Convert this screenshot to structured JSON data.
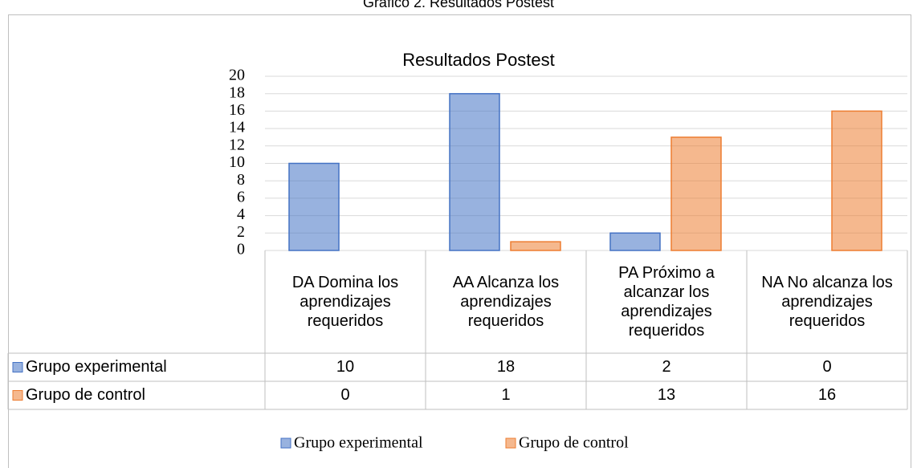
{
  "chart_data": {
    "type": "bar",
    "caption": "Gráfico 2. Resultados Postest",
    "title": "Resultados Postest",
    "categories": [
      "DA Domina los aprendizajes requeridos",
      "AA Alcanza los aprendizajes requeridos",
      "PA Próximo a alcanzar los aprendizajes requeridos",
      "NA No alcanza los aprendizajes requeridos"
    ],
    "series": [
      {
        "name": "Grupo experimental",
        "color": "#4472c4",
        "values": [
          10,
          18,
          2,
          0
        ]
      },
      {
        "name": "Grupo de control",
        "color": "#ed7d31",
        "values": [
          0,
          1,
          13,
          16
        ]
      }
    ],
    "ylim": [
      0,
      20
    ],
    "yticks": [
      0,
      2,
      4,
      6,
      8,
      10,
      12,
      14,
      16,
      18,
      20
    ],
    "grid": true,
    "legend": "bottom",
    "data_table": true
  }
}
